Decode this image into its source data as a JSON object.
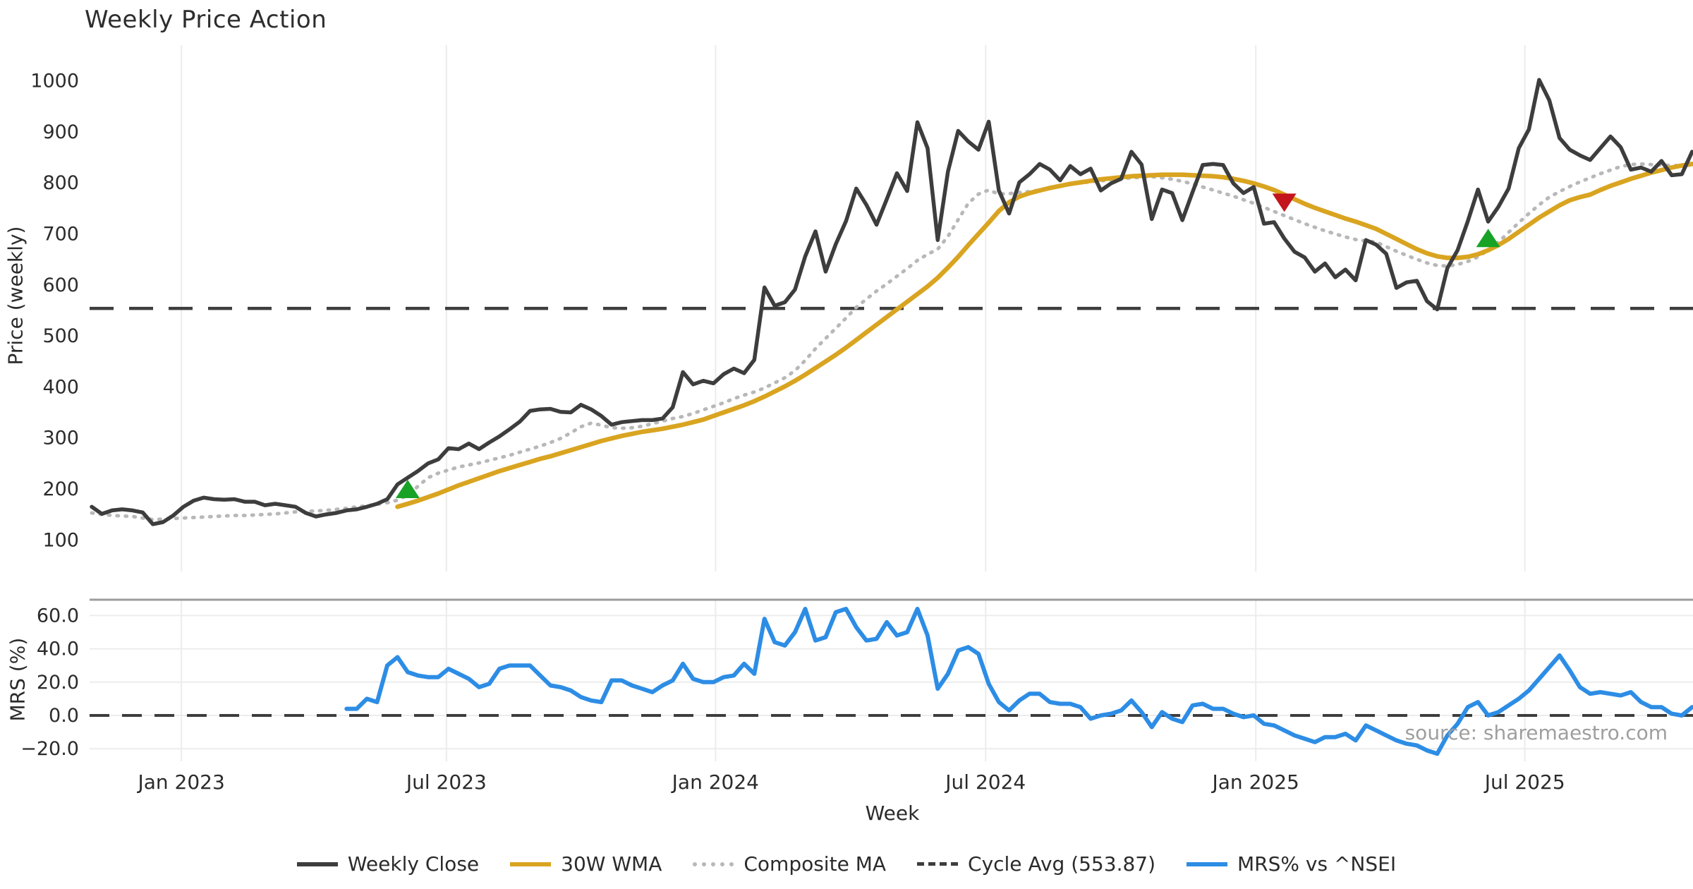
{
  "title": "Weekly Price Action",
  "source_note": "source: sharemaestro.com",
  "price_panel": {
    "y_label": "Price (weekly)",
    "y_ticks": [
      {
        "value": 1000,
        "label": "1000"
      },
      {
        "value": 900,
        "label": "900"
      },
      {
        "value": 800,
        "label": "800"
      },
      {
        "value": 700,
        "label": "700"
      },
      {
        "value": 600,
        "label": "600"
      },
      {
        "value": 500,
        "label": "500"
      },
      {
        "value": 400,
        "label": "400"
      },
      {
        "value": 300,
        "label": "300"
      },
      {
        "value": 200,
        "label": "200"
      },
      {
        "value": 100,
        "label": "100"
      }
    ]
  },
  "mrs_panel": {
    "y_label": "MRS (%)",
    "y_ticks": [
      {
        "value": 60,
        "label": "60.0"
      },
      {
        "value": 40,
        "label": "40.0"
      },
      {
        "value": 20,
        "label": "20.0"
      },
      {
        "value": 0,
        "label": "0.0"
      },
      {
        "value": -20,
        "label": "−20.0"
      }
    ]
  },
  "x_axis": {
    "label": "Week",
    "ticks": [
      {
        "week": 8.8,
        "label": "Jan 2023"
      },
      {
        "week": 34.8,
        "label": "Jul 2023"
      },
      {
        "week": 61.2,
        "label": "Jan 2024"
      },
      {
        "week": 87.7,
        "label": "Jul 2024"
      },
      {
        "week": 114.2,
        "label": "Jan 2025"
      },
      {
        "week": 140.6,
        "label": "Jul 2025"
      }
    ]
  },
  "legend": {
    "items": [
      {
        "label": "Weekly Close",
        "style": "solid",
        "color": "#3d3d3d"
      },
      {
        "label": "30W WMA",
        "style": "solid",
        "color": "#d9a420"
      },
      {
        "label": "Composite MA",
        "style": "dotted",
        "color": "#b8b8b8"
      },
      {
        "label": "Cycle Avg (553.87)",
        "style": "dashed",
        "color": "#3d3d3d"
      },
      {
        "label": "MRS% vs ^NSEI",
        "style": "solid",
        "color": "#2d8de5"
      }
    ]
  },
  "colors": {
    "close": "#3d3d3d",
    "wma30": "#d9a420",
    "composite": "#b8b8b8",
    "cycle_avg": "#3d3d3d",
    "mrs": "#2d8de5",
    "buy_marker": "#18a327",
    "sell_marker": "#c4151c",
    "grid": "#ececec",
    "spine": "#9c9c9c",
    "tick_text": "#2b2b2b"
  },
  "chart_data": {
    "type": "line",
    "x_unit": "week_index",
    "n_weeks": 158,
    "x_range_note": "weekly data, ~Nov 2022 to ~Oct 2025",
    "cycle_avg": 553.87,
    "price_ylim": [
      38,
      1075
    ],
    "mrs_ylim": [
      -27.5,
      69.5
    ],
    "series": [
      {
        "name": "Weekly Close",
        "panel": "price",
        "style": "solid",
        "color": "#3d3d3d",
        "values": [
          165,
          151,
          158,
          160,
          158,
          154,
          131,
          135,
          148,
          165,
          177,
          183,
          180,
          179,
          180,
          175,
          175,
          168,
          171,
          168,
          165,
          153,
          146,
          150,
          153,
          158,
          160,
          165,
          171,
          180,
          209,
          222,
          235,
          250,
          258,
          280,
          278,
          289,
          278,
          291,
          303,
          317,
          332,
          353,
          356,
          357,
          351,
          350,
          365,
          356,
          343,
          326,
          331,
          333,
          335,
          335,
          338,
          360,
          429,
          405,
          412,
          407,
          425,
          436,
          427,
          453,
          595,
          559,
          566,
          591,
          656,
          705,
          626,
          680,
          725,
          789,
          757,
          718,
          768,
          819,
          784,
          919,
          868,
          688,
          822,
          902,
          881,
          865,
          920,
          785,
          740,
          801,
          817,
          837,
          826,
          805,
          833,
          817,
          828,
          785,
          799,
          808,
          861,
          836,
          729,
          787,
          780,
          727,
          782,
          835,
          837,
          835,
          799,
          780,
          792,
          720,
          723,
          691,
          665,
          654,
          626,
          642,
          615,
          630,
          609,
          688,
          679,
          661,
          594,
          605,
          608,
          568,
          552,
          633,
          668,
          725,
          787,
          724,
          753,
          789,
          868,
          905,
          1002,
          962,
          888,
          865,
          854,
          845,
          868,
          891,
          870,
          826,
          830,
          822,
          843,
          815,
          817,
          861
        ]
      },
      {
        "name": "30W WMA",
        "panel": "price",
        "style": "solid",
        "color": "#d9a420",
        "values": [
          null,
          null,
          null,
          null,
          null,
          null,
          null,
          null,
          null,
          null,
          null,
          null,
          null,
          null,
          null,
          null,
          null,
          null,
          null,
          null,
          null,
          null,
          null,
          null,
          null,
          null,
          null,
          null,
          null,
          null,
          165,
          171,
          177,
          184,
          191,
          199,
          207,
          214,
          221,
          228,
          235,
          241,
          247,
          253,
          259,
          264,
          270,
          276,
          282,
          288,
          294,
          299,
          304,
          308,
          312,
          315,
          318,
          322,
          326,
          331,
          336,
          343,
          350,
          357,
          364,
          372,
          381,
          391,
          401,
          412,
          424,
          437,
          450,
          463,
          477,
          492,
          507,
          522,
          537,
          552,
          567,
          582,
          597,
          614,
          634,
          655,
          678,
          700,
          722,
          745,
          762,
          773,
          780,
          785,
          790,
          794,
          798,
          801,
          804,
          807,
          809,
          811,
          813,
          814,
          815,
          816,
          816,
          816,
          815,
          814,
          813,
          811,
          808,
          804,
          799,
          793,
          786,
          777,
          768,
          759,
          751,
          744,
          737,
          730,
          724,
          717,
          710,
          700,
          690,
          680,
          670,
          662,
          656,
          653,
          653,
          655,
          660,
          668,
          678,
          690,
          704,
          718,
          732,
          744,
          756,
          766,
          772,
          777,
          786,
          794,
          801,
          808,
          814,
          820,
          825,
          830,
          834,
          837
        ]
      },
      {
        "name": "Composite MA",
        "panel": "price",
        "style": "dotted",
        "color": "#b8b8b8",
        "values": [
          153,
          150,
          148,
          147,
          146,
          143,
          140,
          141,
          142,
          143,
          144,
          145,
          146,
          147,
          148,
          148,
          149,
          150,
          151,
          153,
          155,
          156,
          157,
          158,
          160,
          162,
          165,
          167,
          170,
          173,
          178,
          188,
          205,
          222,
          231,
          237,
          243,
          247,
          251,
          256,
          261,
          266,
          272,
          278,
          284,
          291,
          299,
          310,
          322,
          329,
          325,
          320,
          319,
          320,
          323,
          328,
          333,
          338,
          342,
          348,
          355,
          362,
          369,
          377,
          384,
          390,
          398,
          408,
          418,
          432,
          452,
          475,
          495,
          515,
          535,
          556,
          572,
          588,
          602,
          617,
          632,
          648,
          660,
          670,
          695,
          728,
          760,
          778,
          786,
          778,
          779,
          781,
          783,
          786,
          790,
          794,
          797,
          800,
          802,
          804,
          806,
          808,
          810,
          811,
          812,
          810,
          807,
          803,
          798,
          792,
          786,
          780,
          774,
          767,
          760,
          752,
          744,
          736,
          728,
          720,
          713,
          706,
          700,
          694,
          689,
          686,
          684,
          675,
          666,
          658,
          650,
          643,
          638,
          637,
          640,
          646,
          655,
          668,
          684,
          703,
          722,
          740,
          757,
          772,
          783,
          793,
          802,
          810,
          818,
          825,
          832,
          836,
          837,
          836,
          835,
          834,
          834,
          835
        ]
      },
      {
        "name": "MRS% vs ^NSEI",
        "panel": "mrs",
        "style": "solid",
        "color": "#2d8de5",
        "values": [
          null,
          null,
          null,
          null,
          null,
          null,
          null,
          null,
          null,
          null,
          null,
          null,
          null,
          null,
          null,
          null,
          null,
          null,
          null,
          null,
          null,
          null,
          null,
          null,
          null,
          4,
          4,
          10,
          8,
          30,
          35,
          26,
          24,
          23,
          23,
          28,
          25,
          22,
          17,
          19,
          28,
          30,
          30,
          30,
          24,
          18,
          17,
          15,
          11,
          9,
          8,
          21,
          21,
          18,
          16,
          14,
          18,
          21,
          31,
          22,
          20,
          20,
          23,
          24,
          31,
          25,
          58,
          44,
          42,
          50,
          64,
          45,
          47,
          62,
          64,
          53,
          45,
          46,
          56,
          48,
          50,
          64,
          48,
          16,
          25,
          39,
          41,
          37,
          19,
          8,
          3,
          9,
          13,
          13,
          8,
          7,
          7,
          5,
          -2,
          0,
          1,
          3,
          9,
          2,
          -7,
          2,
          -2,
          -4,
          6,
          7,
          4,
          4,
          1,
          -1,
          0,
          -5,
          -6,
          -9,
          -12,
          -14,
          -16,
          -13,
          -13,
          -11,
          -15,
          -6,
          -9,
          -12,
          -15,
          -17,
          -18,
          -21,
          -23,
          -12,
          -5,
          5,
          8,
          0,
          2,
          6,
          10,
          15,
          22,
          29,
          36,
          27,
          17,
          13,
          14,
          13,
          12,
          14,
          8,
          5,
          5,
          1,
          0,
          5
        ]
      }
    ],
    "markers": [
      {
        "week": 31,
        "price": 200,
        "type": "buy",
        "shape": "triangle-up",
        "color": "#18a327"
      },
      {
        "week": 117,
        "price": 761,
        "type": "sell",
        "shape": "triangle-down",
        "color": "#c4151c"
      },
      {
        "week": 137,
        "price": 692,
        "type": "buy",
        "shape": "triangle-up",
        "color": "#18a327"
      }
    ]
  }
}
